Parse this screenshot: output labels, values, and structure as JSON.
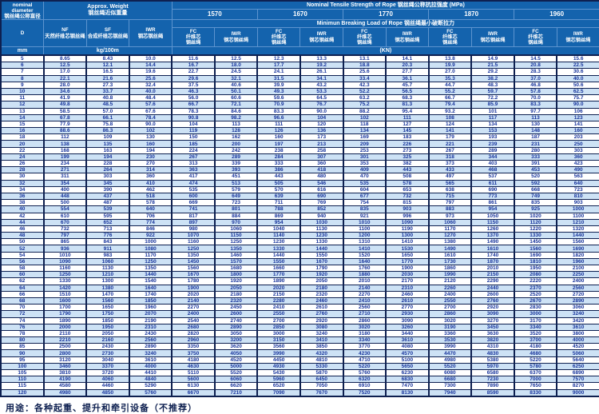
{
  "colors": {
    "header_blue": "#1463ad",
    "stripe_blue": "#cde2f5",
    "border_navy": "#0e2050",
    "value_text_blue": "#16339b"
  },
  "header": {
    "nominal_diameter": "nominal\ndiameter\n钢丝绳公称直径",
    "approx_weight": "Approx. Weight\n钢丝绳近似重量",
    "tensile_title": "Nominal  Tensile  Strength  of  Rope  钢丝绳公称抗拉强度  (MPa)",
    "breaking_title": "Minimun  Breaking  Load  of  Rope  钢丝绳最小破断拉力",
    "strength_grades": [
      "1570",
      "1670",
      "1770",
      "1870",
      "1960"
    ],
    "col_d": "D",
    "col_nf": "NF\n天然纤维芯钢丝绳",
    "col_sf": "SF\n合成纤维芯钢丝绳",
    "col_iwr": "IWR\n钢芯钢丝绳",
    "col_fc_sub": "FC\n纤维芯\n钢丝绳",
    "col_iwr_sub": "IWR\n钢芯钢丝绳",
    "unit_mm": "mm",
    "unit_weight": "kg/100m",
    "unit_load": "(KN)"
  },
  "table": {
    "rows": [
      [
        "5",
        "8.65",
        "8.43",
        "10.0",
        "11.6",
        "12.5",
        "12.3",
        "13.3",
        "13.1",
        "14.1",
        "13.8",
        "14.9",
        "14.5",
        "15.6"
      ],
      [
        "6",
        "12.5",
        "12.1",
        "14.4",
        "16.7",
        "18.0",
        "17.7",
        "19.2",
        "18.8",
        "20.3",
        "19.9",
        "21.5",
        "20.8",
        "22.5"
      ],
      [
        "7",
        "17.0",
        "16.5",
        "19.6",
        "22.7",
        "24.5",
        "24.1",
        "26.1",
        "25.6",
        "27.7",
        "27.0",
        "29.2",
        "28.3",
        "30.6"
      ],
      [
        "8",
        "22.1",
        "21.6",
        "25.6",
        "29.6",
        "32.1",
        "31.5",
        "34.1",
        "33.4",
        "36.1",
        "35.3",
        "38.2",
        "37.0",
        "40.0"
      ],
      [
        "9",
        "28.0",
        "27.3",
        "32.4",
        "37.5",
        "40.6",
        "39.9",
        "43.2",
        "42.3",
        "45.7",
        "44.7",
        "48.3",
        "46.8",
        "50.6"
      ],
      [
        "10",
        "34.6",
        "33.7",
        "40.0",
        "46.3",
        "50.1",
        "49.3",
        "53.3",
        "52.2",
        "56.5",
        "55.2",
        "59.7",
        "57.8",
        "62.5"
      ],
      [
        "11",
        "41.9",
        "40.8",
        "48.4",
        "56.0",
        "60.6",
        "59.6",
        "64.5",
        "63.2",
        "68.3",
        "66.7",
        "72.2",
        "70.0",
        "75.7"
      ],
      [
        "12",
        "49.8",
        "48.5",
        "57.6",
        "66.7",
        "72.1",
        "70.9",
        "76.7",
        "75.2",
        "81.3",
        "79.4",
        "85.9",
        "83.3",
        "90.0"
      ],
      [
        "13",
        "58.5",
        "57.0",
        "67.6",
        "78.3",
        "84.6",
        "83.3",
        "90.0",
        "88.2",
        "95.4",
        "93.2",
        "101",
        "97.7",
        "106"
      ],
      [
        "14",
        "67.8",
        "66.1",
        "78.4",
        "90.8",
        "98.2",
        "96.6",
        "104",
        "102",
        "111",
        "108",
        "117",
        "113",
        "123"
      ],
      [
        "15",
        "77.9",
        "75.8",
        "90.0",
        "104",
        "113",
        "111",
        "120",
        "118",
        "127",
        "124",
        "134",
        "130",
        "141"
      ],
      [
        "16",
        "88.6",
        "86.3",
        "102",
        "119",
        "128",
        "126",
        "136",
        "134",
        "145",
        "141",
        "153",
        "148",
        "160"
      ],
      [
        "18",
        "112",
        "109",
        "130",
        "150",
        "162",
        "160",
        "173",
        "169",
        "183",
        "179",
        "193",
        "187",
        "203"
      ],
      [
        "20",
        "138",
        "135",
        "160",
        "185",
        "200",
        "197",
        "213",
        "209",
        "226",
        "221",
        "239",
        "231",
        "250"
      ],
      [
        "22",
        "168",
        "163",
        "194",
        "224",
        "242",
        "238",
        "258",
        "253",
        "273",
        "267",
        "289",
        "280",
        "303"
      ],
      [
        "24",
        "199",
        "194",
        "230",
        "267",
        "289",
        "284",
        "307",
        "301",
        "325",
        "318",
        "344",
        "333",
        "360"
      ],
      [
        "26",
        "234",
        "228",
        "270",
        "313",
        "339",
        "333",
        "360",
        "353",
        "382",
        "373",
        "403",
        "391",
        "423"
      ],
      [
        "28",
        "271",
        "264",
        "314",
        "363",
        "393",
        "386",
        "418",
        "409",
        "443",
        "433",
        "468",
        "453",
        "490"
      ],
      [
        "30",
        "311",
        "303",
        "360",
        "417",
        "451",
        "443",
        "480",
        "470",
        "508",
        "497",
        "537",
        "520",
        "563"
      ],
      [
        "32",
        "354",
        "345",
        "410",
        "474",
        "513",
        "505",
        "546",
        "535",
        "578",
        "565",
        "611",
        "592",
        "640"
      ],
      [
        "34",
        "400",
        "390",
        "462",
        "535",
        "579",
        "570",
        "616",
        "604",
        "653",
        "638",
        "690",
        "668",
        "723"
      ],
      [
        "36",
        "448",
        "437",
        "518",
        "600",
        "649",
        "639",
        "690",
        "677",
        "732",
        "715",
        "773",
        "749",
        "810"
      ],
      [
        "38",
        "500",
        "487",
        "578",
        "669",
        "723",
        "711",
        "769",
        "754",
        "815",
        "797",
        "861",
        "835",
        "903"
      ],
      [
        "40",
        "554",
        "539",
        "640",
        "741",
        "801",
        "788",
        "852",
        "835",
        "903",
        "883",
        "954",
        "925",
        "1000"
      ],
      [
        "42",
        "610",
        "595",
        "706",
        "817",
        "884",
        "869",
        "940",
        "921",
        "996",
        "973",
        "1050",
        "1020",
        "1100"
      ],
      [
        "44",
        "670",
        "652",
        "774",
        "897",
        "970",
        "954",
        "1030",
        "1010",
        "1090",
        "1060",
        "1150",
        "1120",
        "1210"
      ],
      [
        "46",
        "732",
        "713",
        "846",
        "980",
        "1060",
        "1040",
        "1130",
        "1100",
        "1190",
        "1170",
        "1260",
        "1220",
        "1320"
      ],
      [
        "48",
        "797",
        "776",
        "922",
        "1070",
        "1150",
        "1140",
        "1230",
        "1200",
        "1300",
        "1270",
        "1370",
        "1330",
        "1440"
      ],
      [
        "50",
        "865",
        "843",
        "1000",
        "1160",
        "1250",
        "1230",
        "1330",
        "1310",
        "1410",
        "1380",
        "1490",
        "1450",
        "1560"
      ],
      [
        "52",
        "936",
        "911",
        "1080",
        "1250",
        "1350",
        "1330",
        "1440",
        "1410",
        "1530",
        "1490",
        "1610",
        "1560",
        "1690"
      ],
      [
        "54",
        "1010",
        "983",
        "1170",
        "1350",
        "1460",
        "1440",
        "1550",
        "1520",
        "1650",
        "1610",
        "1740",
        "1690",
        "1820"
      ],
      [
        "56",
        "1090",
        "1060",
        "1250",
        "1450",
        "1570",
        "1550",
        "1670",
        "1640",
        "1770",
        "1730",
        "1870",
        "1810",
        "1960"
      ],
      [
        "58",
        "1160",
        "1130",
        "1350",
        "1560",
        "1680",
        "1660",
        "1790",
        "1760",
        "1900",
        "1860",
        "2010",
        "1950",
        "2100"
      ],
      [
        "60",
        "1250",
        "1210",
        "1440",
        "1670",
        "1800",
        "1770",
        "1920",
        "1880",
        "2030",
        "1990",
        "2150",
        "2080",
        "2250"
      ],
      [
        "62",
        "1330",
        "1300",
        "1540",
        "1780",
        "1920",
        "1890",
        "2050",
        "2010",
        "2170",
        "2120",
        "2290",
        "2220",
        "2400"
      ],
      [
        "64",
        "1420",
        "1380",
        "1640",
        "1900",
        "2050",
        "2020",
        "2180",
        "2140",
        "2310",
        "2260",
        "2440",
        "2370",
        "2560"
      ],
      [
        "66",
        "1510",
        "1470",
        "1740",
        "2020",
        "2180",
        "2150",
        "2320",
        "2270",
        "2460",
        "2400",
        "2600",
        "2520",
        "2720"
      ],
      [
        "68",
        "1600",
        "1560",
        "1850",
        "2140",
        "2320",
        "2280",
        "2460",
        "2410",
        "2610",
        "2550",
        "2760",
        "2670",
        "2890"
      ],
      [
        "70",
        "1700",
        "1650",
        "1960",
        "2270",
        "2450",
        "2410",
        "2610",
        "2560",
        "2770",
        "2700",
        "2920",
        "2830",
        "3060"
      ],
      [
        "72",
        "1790",
        "1750",
        "2070",
        "2400",
        "2600",
        "2550",
        "2760",
        "2710",
        "2930",
        "2860",
        "3090",
        "3000",
        "3240"
      ],
      [
        "74",
        "1890",
        "1850",
        "2190",
        "2540",
        "2740",
        "2700",
        "2920",
        "2860",
        "3090",
        "3020",
        "3270",
        "3170",
        "3420"
      ],
      [
        "76",
        "2000",
        "1950",
        "2310",
        "2680",
        "2890",
        "2850",
        "3080",
        "3020",
        "3260",
        "3190",
        "3450",
        "3340",
        "3610"
      ],
      [
        "78",
        "2110",
        "2050",
        "2430",
        "2820",
        "3050",
        "3000",
        "3240",
        "3180",
        "3440",
        "3360",
        "3630",
        "3520",
        "3800"
      ],
      [
        "80",
        "2210",
        "2160",
        "2560",
        "2960",
        "3200",
        "3150",
        "3410",
        "3340",
        "3610",
        "3530",
        "3820",
        "3700",
        "4000"
      ],
      [
        "85",
        "2500",
        "2430",
        "2890",
        "3350",
        "3620",
        "3560",
        "3850",
        "3770",
        "4080",
        "3990",
        "4310",
        "4180",
        "4520"
      ],
      [
        "90",
        "2800",
        "2730",
        "3240",
        "3750",
        "4050",
        "3990",
        "4320",
        "4230",
        "4570",
        "4470",
        "4830",
        "4680",
        "5060"
      ],
      [
        "95",
        "3120",
        "3040",
        "3610",
        "4180",
        "4520",
        "4450",
        "4810",
        "4710",
        "5100",
        "4980",
        "5380",
        "5220",
        "5640"
      ],
      [
        "100",
        "3460",
        "3370",
        "4000",
        "4630",
        "5000",
        "4930",
        "5330",
        "5220",
        "5650",
        "5520",
        "5970",
        "5780",
        "6250"
      ],
      [
        "105",
        "3810",
        "3720",
        "4410",
        "5110",
        "5520",
        "5430",
        "5870",
        "5760",
        "6230",
        "6080",
        "6580",
        "6370",
        "6890"
      ],
      [
        "110",
        "4190",
        "4060",
        "4840",
        "5600",
        "6060",
        "5960",
        "6450",
        "6320",
        "6830",
        "6680",
        "7230",
        "7000",
        "7570"
      ],
      [
        "115",
        "4580",
        "4460",
        "5290",
        "6130",
        "6620",
        "6520",
        "7050",
        "6910",
        "7470",
        "7300",
        "7890",
        "7650",
        "8270"
      ],
      [
        "120",
        "4980",
        "4850",
        "5760",
        "6670",
        "7210",
        "7090",
        "7670",
        "7520",
        "8130",
        "7940",
        "8590",
        "8330",
        "9000"
      ]
    ]
  },
  "footer": {
    "usage": "用途：各种起重、提升和牵引设备（不推荐）"
  }
}
